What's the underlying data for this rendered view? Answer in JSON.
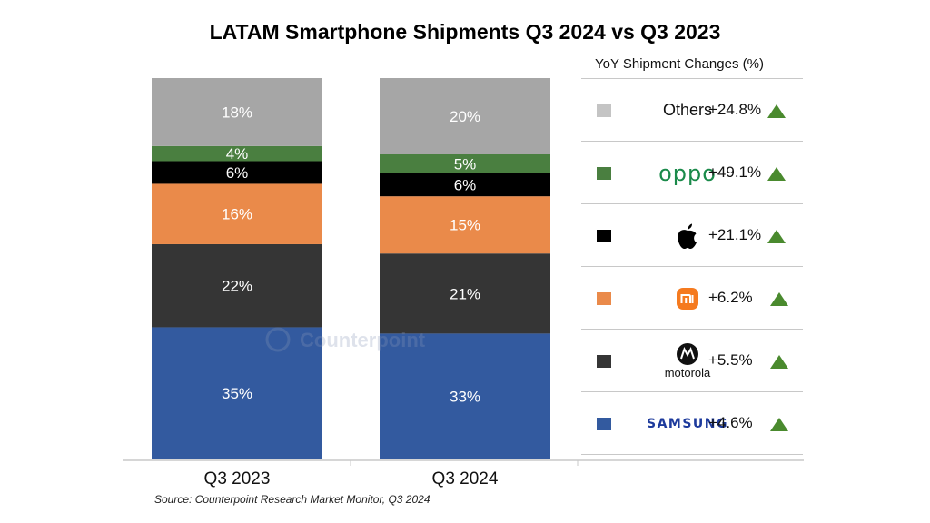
{
  "chart_data": {
    "type": "bar",
    "stacked": true,
    "title": "LATAM Smartphone Shipments Q3 2024 vs Q3 2023",
    "categories": [
      "Q3 2023",
      "Q3 2024"
    ],
    "xlabel": "",
    "ylabel": "",
    "ylim": [
      0,
      100
    ],
    "grid": false,
    "series": [
      {
        "name": "Samsung",
        "color": "#335a9f",
        "values": [
          35,
          33
        ]
      },
      {
        "name": "Motorola",
        "color": "#353535",
        "values": [
          22,
          21
        ]
      },
      {
        "name": "Xiaomi",
        "color": "#ea8a4a",
        "values": [
          16,
          15
        ]
      },
      {
        "name": "Apple",
        "color": "#000000",
        "values": [
          6,
          6
        ]
      },
      {
        "name": "OPPO",
        "color": "#4a7f40",
        "values": [
          4,
          5
        ]
      },
      {
        "name": "Others",
        "color": "#a6a6a6",
        "values": [
          18,
          20
        ]
      }
    ],
    "data_labels": [
      [
        "35%",
        "33%"
      ],
      [
        "22%",
        "21%"
      ],
      [
        "16%",
        "15%"
      ],
      [
        "6%",
        "6%"
      ],
      [
        "4%",
        "5%"
      ],
      [
        "18%",
        "20%"
      ]
    ],
    "legend": {
      "title": "YoY Shipment Changes (%)",
      "placement": "right",
      "items": [
        {
          "brand": "Others",
          "label": "Others",
          "change": "+24.8%",
          "color": "#c4c4c4",
          "trend": "up"
        },
        {
          "brand": "OPPO",
          "label": "oppo",
          "change": "+49.1%",
          "color": "#4a7f40",
          "trend": "up"
        },
        {
          "brand": "Apple",
          "label": "",
          "change": "+21.1%",
          "color": "#000000",
          "trend": "up"
        },
        {
          "brand": "Xiaomi",
          "label": "mi",
          "change": "+6.2%",
          "color": "#ea8a4a",
          "trend": "up"
        },
        {
          "brand": "Motorola",
          "label": "motorola",
          "change": "+5.5%",
          "color": "#353535",
          "trend": "up"
        },
        {
          "brand": "Samsung",
          "label": "SAMSUNG",
          "change": "+4.6%",
          "color": "#335a9f",
          "trend": "up"
        }
      ]
    },
    "annotations": [
      "Counterpoint"
    ],
    "source": "Source: Counterpoint Research Market Monitor, Q3 2024"
  },
  "watermark": "Counterpoint",
  "trend_color": "#4a8a2e"
}
